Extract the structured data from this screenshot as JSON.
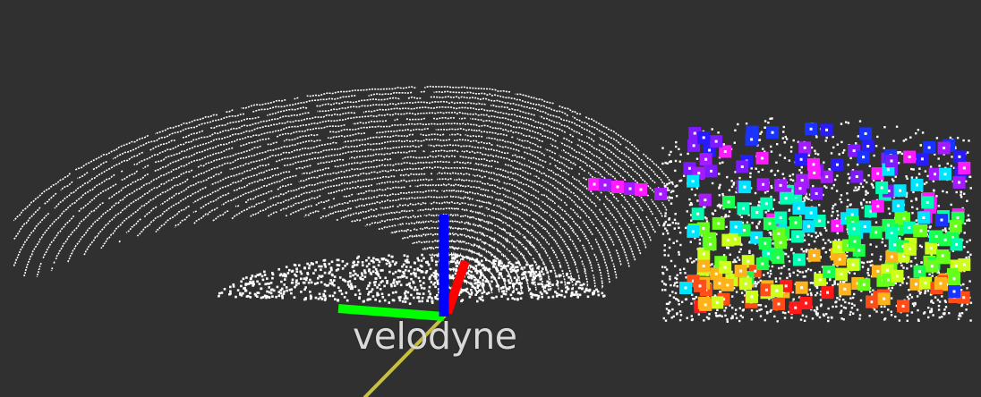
{
  "viewport": {
    "background": "#303030",
    "point_cloud_color": "#ffffff"
  },
  "frame": {
    "label": "velodyne",
    "axis_colors": {
      "x": "#ff0000",
      "y": "#00ff00",
      "z": "#0000ff"
    }
  },
  "path_line": {
    "color": "#c8c040"
  },
  "feature_markers": {
    "colors": [
      "#1a33ff",
      "#2a1aff",
      "#7f1aff",
      "#a61aff",
      "#ff1aff",
      "#00e5ff",
      "#00ffb3",
      "#1aff4d",
      "#66ff1a",
      "#ccff1a",
      "#ffb31a",
      "#ff4d1a",
      "#ff1a1a"
    ]
  }
}
